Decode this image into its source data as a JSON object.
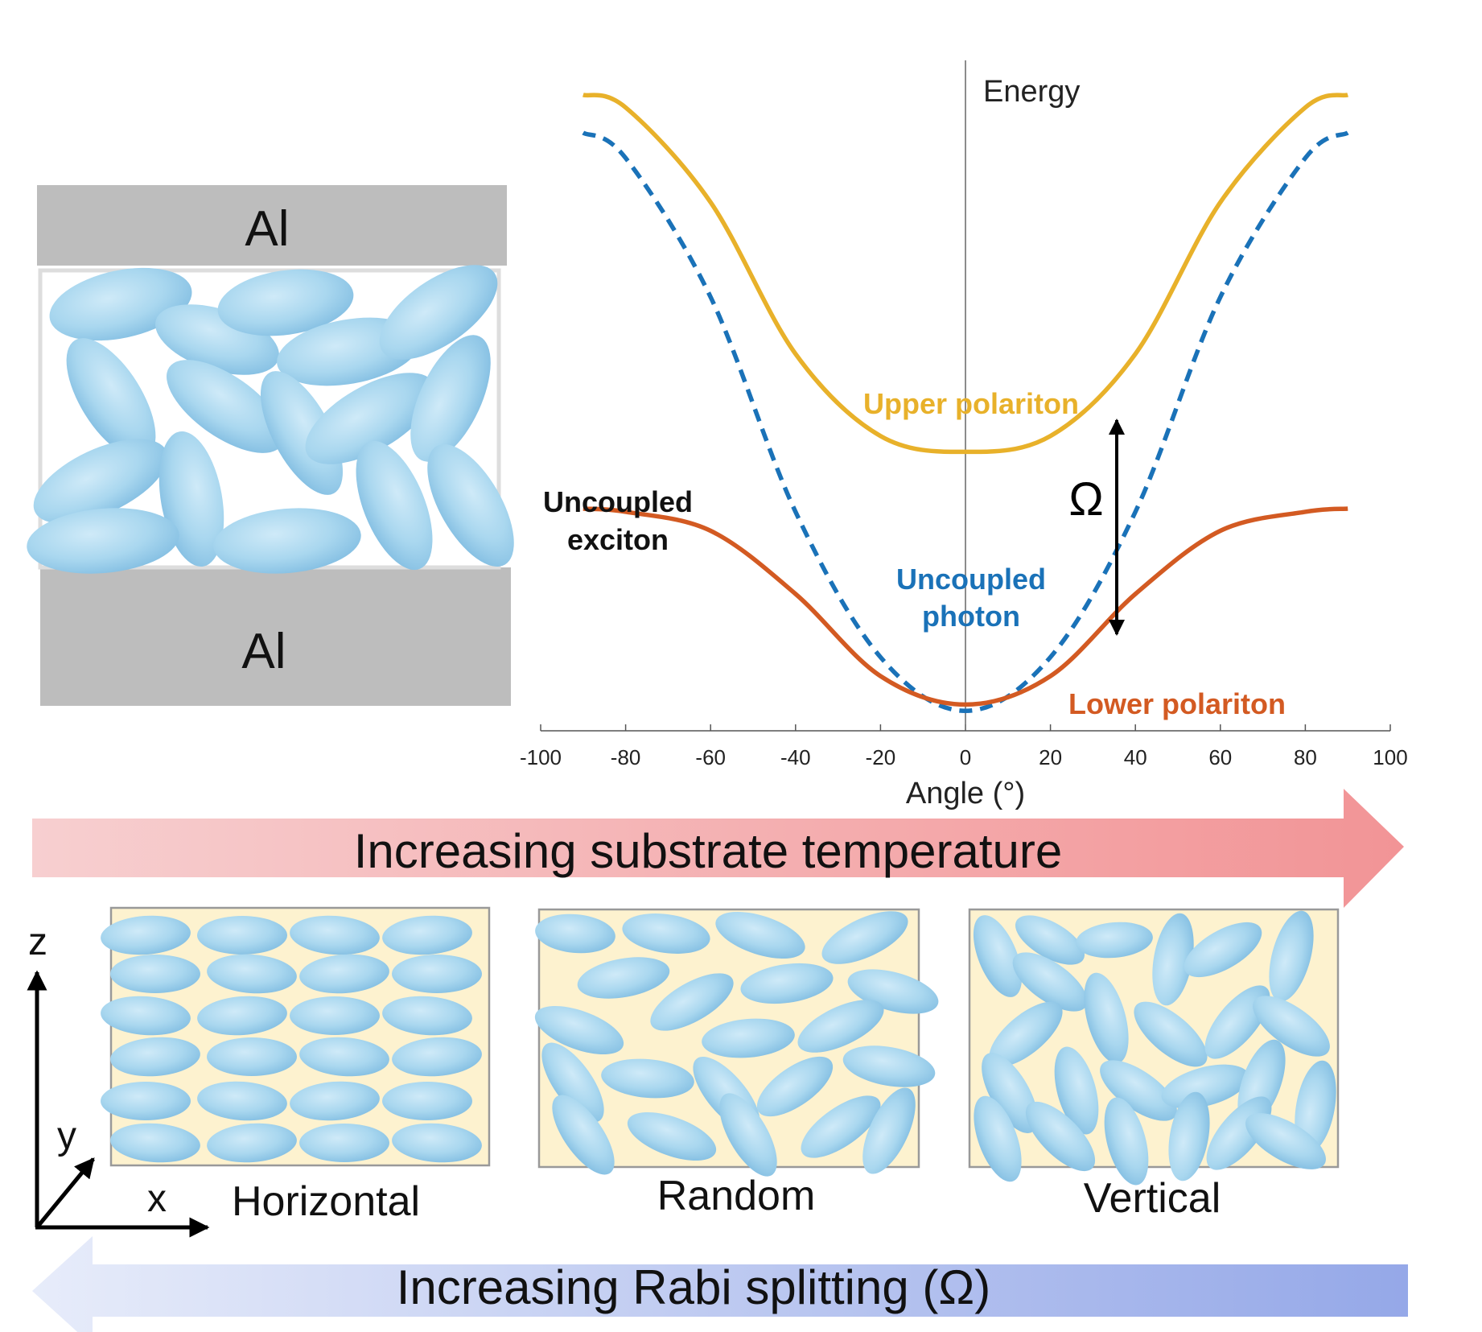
{
  "cavity": {
    "top_metal_label": "Al",
    "bottom_metal_label": "Al"
  },
  "chart_data": {
    "type": "line",
    "ylabel": "Energy",
    "xlabel": "Angle (°)",
    "xlim": [
      -100,
      100
    ],
    "x_ticks": [
      -100,
      -80,
      -60,
      -40,
      -20,
      0,
      20,
      40,
      60,
      80,
      100
    ],
    "y_axis_shown": "vertical line at 0, no ticks",
    "series": [
      {
        "name": "Upper polariton",
        "color": "#e8b12a",
        "style": "solid",
        "x": [
          -90,
          -80,
          -60,
          -40,
          -20,
          0,
          20,
          40,
          60,
          80,
          90
        ],
        "y": [
          0.99,
          0.97,
          0.82,
          0.58,
          0.45,
          0.425,
          0.45,
          0.58,
          0.82,
          0.97,
          0.99
        ]
      },
      {
        "name": "Uncoupled photon",
        "color": "#1a72b8",
        "style": "dashed",
        "x": [
          -90,
          -80,
          -60,
          -40,
          -20,
          0,
          20,
          40,
          60,
          80,
          90
        ],
        "y": [
          0.93,
          0.89,
          0.67,
          0.33,
          0.1,
          0.015,
          0.1,
          0.33,
          0.67,
          0.89,
          0.93
        ]
      },
      {
        "name": "Lower polariton",
        "color": "#d35a22",
        "style": "solid",
        "x": [
          -90,
          -80,
          -60,
          -40,
          -20,
          0,
          20,
          40,
          60,
          80,
          90
        ],
        "y": [
          0.335,
          0.33,
          0.3,
          0.2,
          0.07,
          0.025,
          0.07,
          0.2,
          0.3,
          0.33,
          0.335
        ]
      }
    ],
    "annotations": {
      "upper_label": "Upper polariton",
      "photon_label_line1": "Uncoupled",
      "photon_label_line2": "photon",
      "lower_label": "Lower polariton",
      "exciton_label_line1": "Uncoupled",
      "exciton_label_line2": "exciton",
      "rabi_symbol": "Ω"
    }
  },
  "arrows": {
    "temperature": "Increasing substrate temperature",
    "rabi": "Increasing Rabi splitting (Ω)"
  },
  "axes_3d": {
    "z": "z",
    "y": "y",
    "x": "x"
  },
  "orientations": [
    "Horizontal",
    "Random",
    "Vertical"
  ],
  "colors": {
    "metal": "#bdbdbd",
    "molecule": "#a9d7ef",
    "film_background": "#fdf2cf",
    "temperature_arrow": "#f4a6a6",
    "rabi_arrow": "#98a9e6"
  }
}
